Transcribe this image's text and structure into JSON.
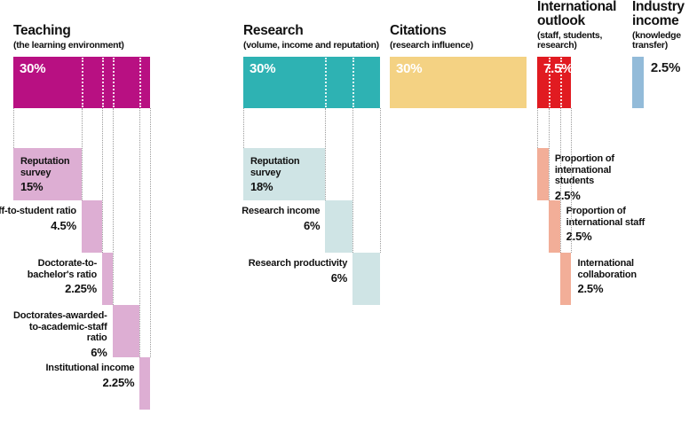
{
  "chart_data": {
    "type": "bar",
    "title": "",
    "unit": "%",
    "total_weight": 100,
    "pillars": [
      {
        "name": "Teaching",
        "subtitle": "(the learning environment)",
        "weight": 30,
        "weight_label": "30%",
        "color": "#b81082",
        "sub_color": "#ddaed3",
        "weight_label_color": "#ffffff",
        "sub_label_side": "left",
        "subs": [
          {
            "name": "Reputation survey",
            "weight": 15,
            "weight_label": "15%",
            "label_inside": true
          },
          {
            "name": "Staff-to-student ratio",
            "weight": 4.5,
            "weight_label": "4.5%"
          },
          {
            "name": "Doctorate-to-bachelor's ratio",
            "weight": 2.25,
            "weight_label": "2.25%"
          },
          {
            "name": "Doctorates-awarded-to-academic-staff ratio",
            "weight": 6,
            "weight_label": "6%"
          },
          {
            "name": "Institutional income",
            "weight": 2.25,
            "weight_label": "2.25%"
          }
        ]
      },
      {
        "name": "Research",
        "subtitle": "(volume, income and reputation)",
        "weight": 30,
        "weight_label": "30%",
        "color": "#2eb2b3",
        "sub_color": "#cfe4e5",
        "weight_label_color": "#ffffff",
        "sub_label_side": "left",
        "subs": [
          {
            "name": "Reputation survey",
            "weight": 18,
            "weight_label": "18%",
            "label_inside": true
          },
          {
            "name": "Research income",
            "weight": 6,
            "weight_label": "6%"
          },
          {
            "name": "Research productivity",
            "weight": 6,
            "weight_label": "6%"
          }
        ]
      },
      {
        "name": "Citations",
        "subtitle": "(research influence)",
        "weight": 30,
        "weight_label": "30%",
        "color": "#f4d283",
        "sub_color": "#f4d283",
        "weight_label_color": "#ffffff",
        "sub_label_side": "left",
        "subs": []
      },
      {
        "name": "International outlook",
        "subtitle": "(staff, students, research)",
        "weight": 7.5,
        "weight_label": "7.5%",
        "color": "#e11b21",
        "sub_color": "#f2ae98",
        "weight_label_color": "#ffffff",
        "sub_label_side": "right",
        "subs": [
          {
            "name": "Proportion of international students",
            "weight": 2.5,
            "weight_label": "2.5%"
          },
          {
            "name": "Proportion of international staff",
            "weight": 2.5,
            "weight_label": "2.5%"
          },
          {
            "name": "International collaboration",
            "weight": 2.5,
            "weight_label": "2.5%"
          }
        ]
      },
      {
        "name": "Industry income",
        "subtitle": "(knowledge transfer)",
        "weight": 2.5,
        "weight_label": "2.5%",
        "color": "#93bbd9",
        "sub_color": "#93bbd9",
        "weight_label_color": "#1a1a1a",
        "weight_label_outside": true,
        "sub_label_side": "right",
        "subs": []
      }
    ]
  }
}
